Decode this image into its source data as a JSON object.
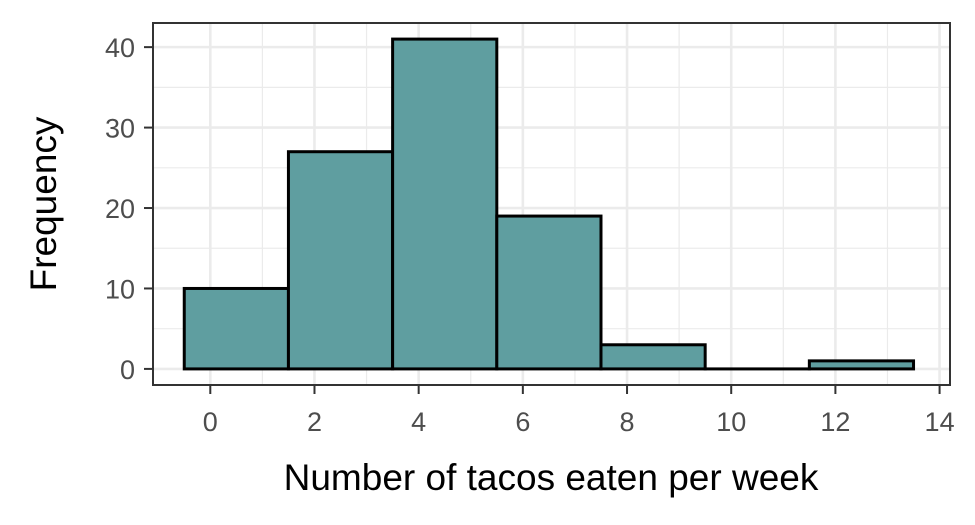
{
  "chart_data": {
    "type": "bar",
    "xlabel": "Number of tacos eaten per week",
    "ylabel": "Frequency",
    "xlim": [
      -1.1,
      14.2
    ],
    "ylim": [
      -2.0,
      43.0
    ],
    "x_ticks": [
      0,
      2,
      4,
      6,
      8,
      10,
      12,
      14
    ],
    "y_ticks": [
      0,
      10,
      20,
      30,
      40
    ],
    "bins": [
      {
        "start": -0.5,
        "end": 1.5,
        "value": 10
      },
      {
        "start": 1.5,
        "end": 3.5,
        "value": 27
      },
      {
        "start": 3.5,
        "end": 5.5,
        "value": 41
      },
      {
        "start": 5.5,
        "end": 7.5,
        "value": 19
      },
      {
        "start": 7.5,
        "end": 9.5,
        "value": 3
      },
      {
        "start": 9.5,
        "end": 11.5,
        "value": 0
      },
      {
        "start": 11.5,
        "end": 13.5,
        "value": 1
      }
    ],
    "grid": true,
    "bar_fill": "#5f9ea0",
    "bar_stroke": "#000000"
  }
}
